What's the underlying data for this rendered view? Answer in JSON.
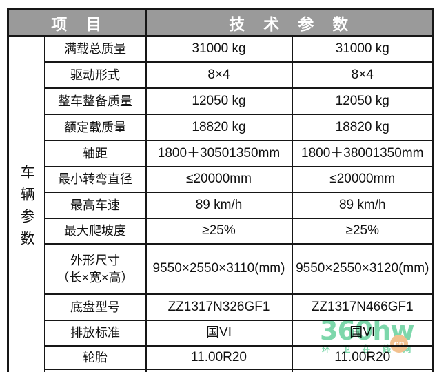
{
  "header": {
    "item": "项　目",
    "params": "技　术　参　数"
  },
  "group": {
    "vertical_text": "车辆参数"
  },
  "rows": [
    {
      "label": "满载总质量",
      "values": [
        "31000 kg",
        "31000 kg"
      ]
    },
    {
      "label": "驱动形式",
      "values": [
        "8×4",
        "8×4"
      ]
    },
    {
      "label": "整车整备质量",
      "values": [
        "12050 kg",
        "12050 kg"
      ]
    },
    {
      "label": "额定载质量",
      "values": [
        "18820 kg",
        "18820 kg"
      ]
    },
    {
      "label": "轴距",
      "values": [
        "1800＋30501350mm",
        "1800＋38001350mm"
      ]
    },
    {
      "label": "最小转弯直径",
      "values": [
        "≤20000mm",
        "≤20000mm"
      ]
    },
    {
      "label": "最高车速",
      "values": [
        "89 km/h",
        "89 km/h"
      ]
    },
    {
      "label": "最大爬坡度",
      "values": [
        "≥25%",
        "≥25%"
      ]
    },
    {
      "label": "外形尺寸\n（长×宽×高）",
      "values": [
        "9550×2550×3110(mm)",
        "9550×2550×3120(mm)"
      ]
    },
    {
      "label": "底盘型号",
      "values": [
        "ZZ1317N326GF1",
        "ZZ1317N466GF1"
      ]
    },
    {
      "label": "排放标准",
      "values": [
        "国VI",
        "国VI"
      ]
    },
    {
      "label": "轮胎",
      "values": [
        "11.00R20",
        "11.00R20"
      ]
    }
  ],
  "watermark": {
    "logo": "360hw",
    "subtext": "环 卫 在 线 网",
    "badge": "cn"
  },
  "colors": {
    "header_bg": "#9a9a9a",
    "header_text": "#ffffff",
    "border": "#161616",
    "watermark_green": "#7dd7ab",
    "watermark_orange": "#f2c18f"
  }
}
